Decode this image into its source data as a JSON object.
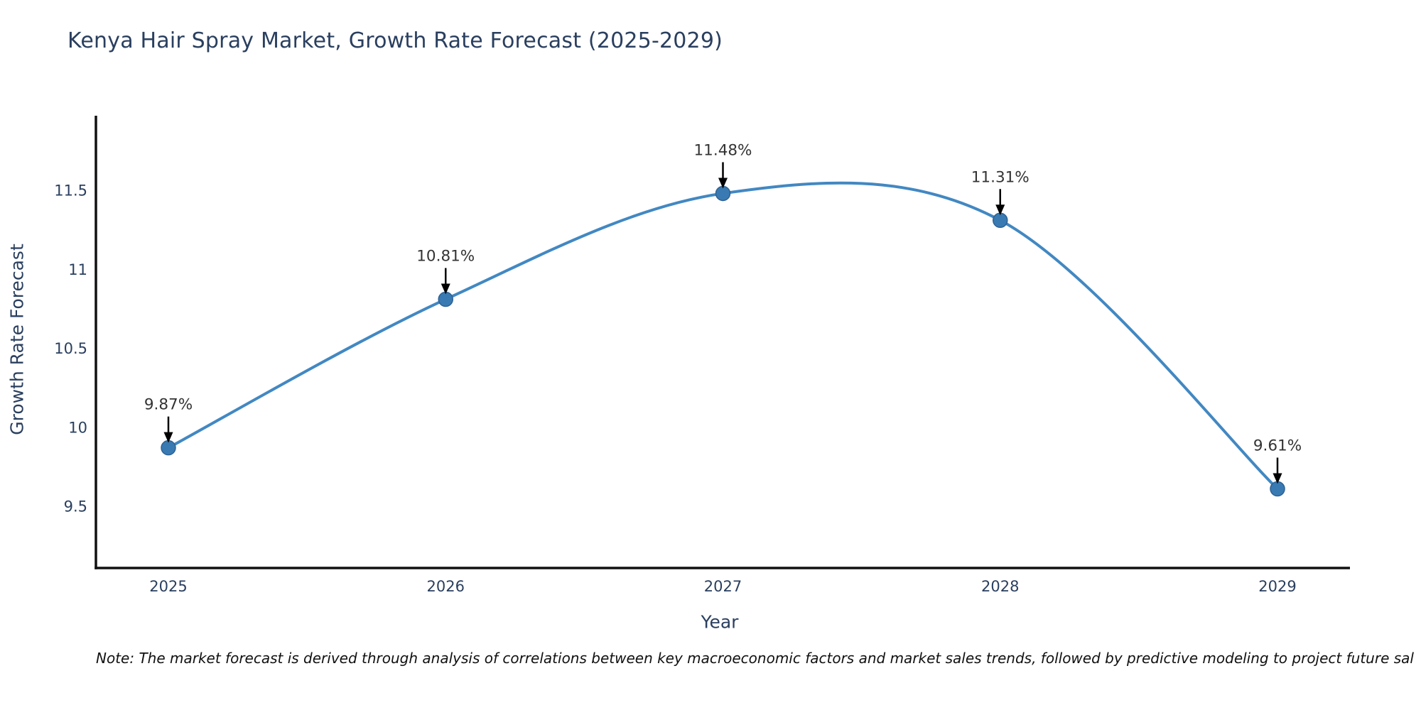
{
  "page": {
    "background": "#ffffff"
  },
  "header": {
    "title": "Kenya Hair Spray Market, Growth Rate Forecast (2025-2029)"
  },
  "footnote": {
    "text": "Note: The market forecast is derived through analysis of correlations between key macroeconomic factors and market sales trends, followed by predictive modeling to project future sal"
  },
  "chart_data": {
    "type": "line",
    "title": "Kenya Hair Spray Market, Growth Rate Forecast (2025-2029)",
    "x": [
      2025,
      2026,
      2027,
      2028,
      2029
    ],
    "series": [
      {
        "name": "Growth Rate Forecast",
        "values": [
          9.87,
          10.81,
          11.48,
          11.31,
          9.61
        ]
      }
    ],
    "point_labels": [
      "9.87%",
      "10.81%",
      "11.48%",
      "11.31%",
      "9.61%"
    ],
    "xlabel": "Year",
    "ylabel": "Growth Rate Forecast",
    "xticks": [
      "2025",
      "2026",
      "2027",
      "2028",
      "2029"
    ],
    "yticks": [
      9.5,
      10,
      10.5,
      11,
      11.5
    ],
    "ylim": [
      9.11,
      11.97
    ],
    "line_shape": "spline",
    "grid": false,
    "legend": "none",
    "annotations_style": "black-arrow-pointing-down-to-point",
    "colors": {
      "line": "#4288c2",
      "marker": "#3a7ab2",
      "marker_edge": "#2d6295",
      "arrow": "#000000",
      "axis_line": "#111111",
      "tick_text": "#2a3f5f",
      "annotation_text": "#333333"
    }
  }
}
